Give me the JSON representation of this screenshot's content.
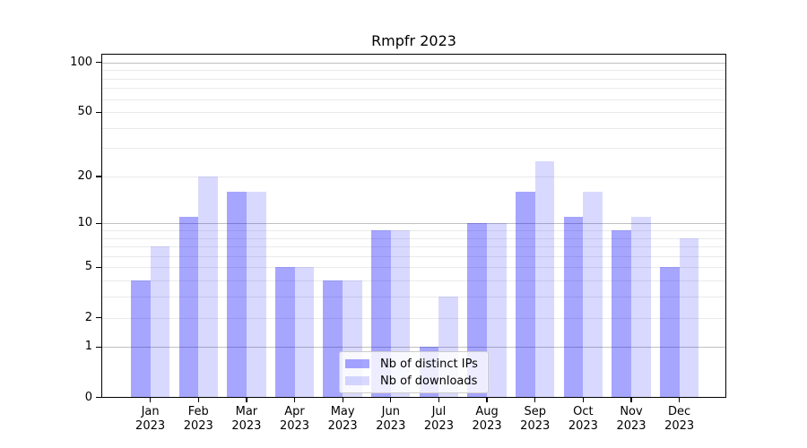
{
  "chart_data": {
    "type": "bar",
    "grouping": "grouped",
    "title": "Rmpfr 2023",
    "categories": [
      "Jan",
      "Feb",
      "Mar",
      "Apr",
      "May",
      "Jun",
      "Jul",
      "Aug",
      "Sep",
      "Oct",
      "Nov",
      "Dec"
    ],
    "x_tick_second_line": "2023",
    "series": [
      {
        "name": "Nb of distinct IPs",
        "color": "rgba(0,0,255,0.35)",
        "color_on_white": "#a6a6ff",
        "values": [
          4,
          11,
          16,
          5,
          4,
          9,
          1,
          10,
          16,
          11,
          9,
          5
        ]
      },
      {
        "name": "Nb of downloads",
        "color": "rgba(0,0,255,0.15)",
        "color_on_white": "#d9d9ff",
        "values": [
          7,
          20,
          16,
          5,
          4,
          9,
          3,
          10,
          25,
          16,
          11,
          8
        ]
      }
    ],
    "yscale": "log1p",
    "ylim": [
      0,
      115
    ],
    "y_ticks": [
      100,
      50,
      20,
      10,
      5,
      2,
      1,
      0
    ],
    "grid": true,
    "grid_major_values": [
      1,
      10,
      100
    ],
    "grid_minor_values": [
      2,
      3,
      4,
      5,
      6,
      7,
      8,
      9,
      20,
      30,
      40,
      50,
      60,
      70,
      80,
      90
    ],
    "legend": {
      "position": "lower center"
    }
  },
  "colors": {
    "background": "#ffffff",
    "axis": "#000000",
    "grid_major": "#c0c0c0",
    "grid_minor": "#eaeaea",
    "legend_border": "#cccccc",
    "legend_background": "rgba(255,255,255,0.8)"
  }
}
